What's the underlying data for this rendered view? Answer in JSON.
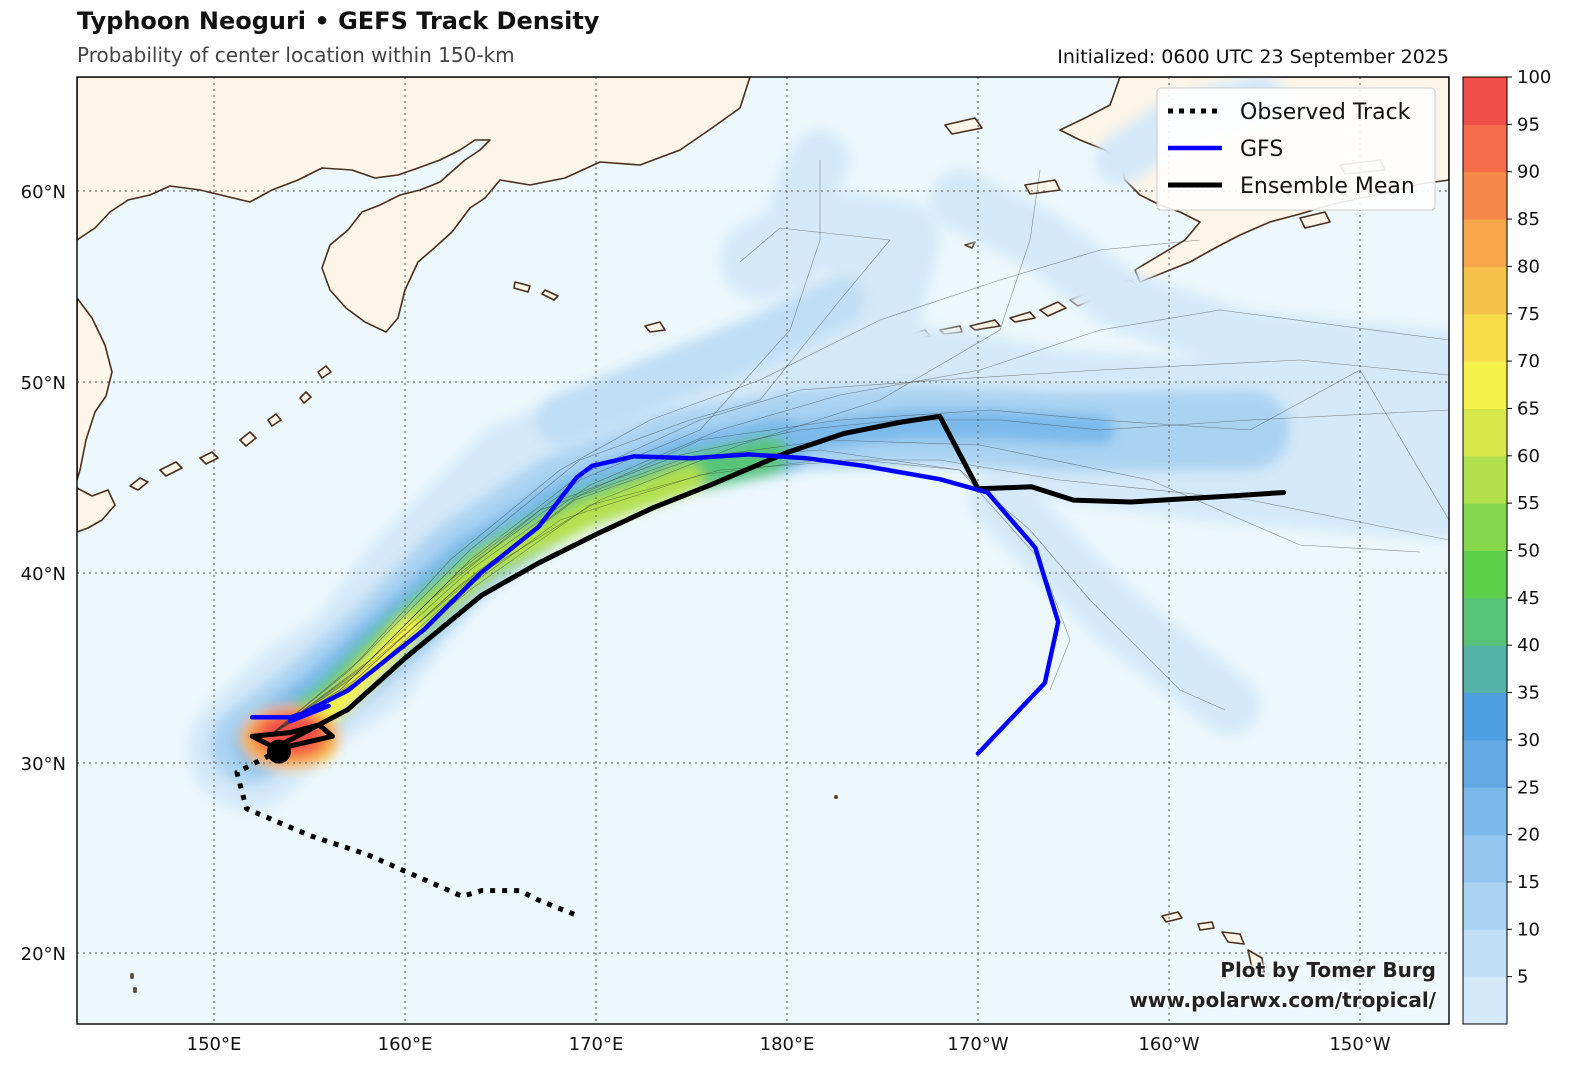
{
  "header": {
    "title": "Typhoon Neoguri • GEFS Track Density",
    "subtitle": "Probability of center location within 150-km",
    "initialized": "Initialized: 0600 UTC 23 September 2025"
  },
  "credit": {
    "line1": "Plot by Tomer Burg",
    "line2": "www.polarwx.com/tropical/"
  },
  "legend": {
    "items": [
      {
        "label": "Observed Track",
        "color": "#000000",
        "style": "dotted"
      },
      {
        "label": "GFS",
        "color": "#0000ff",
        "style": "solid"
      },
      {
        "label": "Ensemble Mean",
        "color": "#000000",
        "style": "solid"
      }
    ]
  },
  "axes": {
    "lat_labels": [
      "60°N",
      "50°N",
      "40°N",
      "30°N",
      "20°N"
    ],
    "lat_values": [
      60,
      50,
      40,
      30,
      20
    ],
    "lon_labels": [
      "150°E",
      "160°E",
      "170°E",
      "180°E",
      "170°W",
      "160°W",
      "150°W"
    ],
    "lon_values": [
      150,
      160,
      170,
      180,
      190,
      200,
      210
    ]
  },
  "colorbar": {
    "ticks": [
      "5",
      "10",
      "15",
      "20",
      "25",
      "30",
      "35",
      "40",
      "45",
      "50",
      "55",
      "60",
      "65",
      "70",
      "75",
      "80",
      "85",
      "90",
      "95",
      "100"
    ],
    "colors": [
      "#d4e9f9",
      "#c0def6",
      "#aad3f2",
      "#92c6ee",
      "#7ab9ea",
      "#62aae6",
      "#4e9fe1",
      "#55b2a6",
      "#58c47a",
      "#5dd04a",
      "#86d94c",
      "#b2e04c",
      "#d8e84a",
      "#f4f24a",
      "#f7dd4a",
      "#f7c24a",
      "#f7a64a",
      "#f78a4a",
      "#f56c48",
      "#f04e48"
    ]
  },
  "tracks": {
    "observed": [
      [
        152.9,
        30.4
      ],
      [
        151.2,
        29.5
      ],
      [
        151.7,
        27.6
      ],
      [
        155.0,
        26.2
      ],
      [
        158.0,
        25.2
      ],
      [
        160.5,
        24.1
      ],
      [
        163.0,
        23.0
      ],
      [
        164.0,
        23.3
      ],
      [
        166.0,
        23.3
      ],
      [
        167.0,
        22.8
      ],
      [
        169.0,
        22.0
      ]
    ],
    "gfs": [
      [
        152.0,
        32.4
      ],
      [
        154.0,
        32.4
      ],
      [
        156.0,
        33.0
      ],
      [
        154.0,
        32.2
      ],
      [
        155.0,
        32.8
      ],
      [
        157.0,
        33.8
      ],
      [
        161.0,
        37.0
      ],
      [
        164.0,
        40.0
      ],
      [
        167.0,
        42.4
      ],
      [
        169.0,
        45.0
      ],
      [
        169.8,
        45.6
      ],
      [
        172.0,
        46.1
      ],
      [
        175.0,
        46.0
      ],
      [
        178.0,
        46.2
      ],
      [
        181.0,
        46.0
      ],
      [
        184.0,
        45.6
      ],
      [
        188.0,
        44.9
      ],
      [
        190.5,
        44.2
      ],
      [
        193.0,
        41.3
      ],
      [
        194.2,
        37.4
      ],
      [
        193.5,
        34.2
      ],
      [
        190.0,
        30.5
      ]
    ],
    "mean": [
      [
        153.2,
        30.8
      ],
      [
        152.0,
        31.4
      ],
      [
        154.0,
        31.6
      ],
      [
        155.5,
        32.0
      ],
      [
        156.2,
        31.4
      ],
      [
        154.0,
        30.9
      ],
      [
        153.2,
        30.8
      ],
      [
        157.0,
        32.8
      ],
      [
        160.0,
        35.5
      ],
      [
        164.0,
        38.8
      ],
      [
        167.0,
        40.5
      ],
      [
        170.0,
        42.0
      ],
      [
        173.0,
        43.4
      ],
      [
        176.0,
        44.6
      ],
      [
        180.0,
        46.3
      ],
      [
        183.0,
        47.3
      ],
      [
        186.0,
        47.9
      ],
      [
        188.0,
        48.2
      ],
      [
        190.0,
        44.4
      ],
      [
        192.8,
        44.5
      ],
      [
        195.0,
        43.8
      ],
      [
        198.0,
        43.7
      ],
      [
        203.0,
        44.0
      ],
      [
        206.0,
        44.2
      ]
    ],
    "current_position": [
      153.4,
      30.6
    ]
  }
}
